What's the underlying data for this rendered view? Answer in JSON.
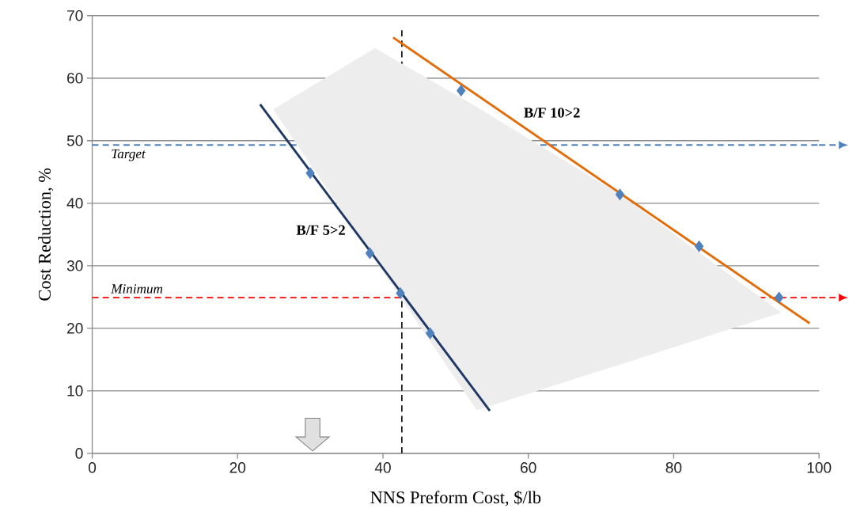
{
  "chart_data": {
    "type": "line",
    "xlabel": "NNS Preform Cost, $/lb",
    "ylabel": "Cost Reduction, %",
    "xlim": [
      0,
      100
    ],
    "xticks": [
      0,
      20,
      40,
      60,
      80,
      100
    ],
    "ylim": [
      0,
      70
    ],
    "yticks": [
      0,
      10,
      20,
      30,
      40,
      50,
      60,
      70
    ],
    "grid": "y",
    "series": [
      {
        "name": "B/F 5>2",
        "color": "#1f3864",
        "marker": "none",
        "x": [
          23.1,
          54.7
        ],
        "values": [
          55.8,
          6.8
        ]
      },
      {
        "name": "B/F 10>2",
        "color": "#e36c09",
        "marker": "none",
        "x": [
          41.4,
          98.7
        ],
        "values": [
          66.5,
          20.8
        ]
      },
      {
        "type": "scatter",
        "color": "#4f81bd",
        "marker": "diamond",
        "x": [
          30.0,
          38.2,
          42.4,
          46.5,
          50.75,
          72.6,
          83.5,
          94.5
        ],
        "values": [
          44.8,
          32.0,
          25.6,
          19.2,
          58.0,
          41.4,
          33.1,
          24.9
        ]
      },
      {
        "type": "area",
        "color": "#ededed",
        "x": [
          24.9,
          38.9,
          52.9,
          72.6,
          94.8
        ],
        "values": [
          null,
          null,
          null,
          null,
          null
        ],
        "lower": [
          55.0,
          31.0,
          6.9,
          14.2,
          22.5
        ],
        "upper": [
          55.0,
          64.8,
          55.4,
          41.4,
          22.5
        ]
      }
    ],
    "ref_lines": [
      {
        "axis": "y",
        "value": 49.3,
        "label": "Target",
        "color": "#4f81bd",
        "line_style": "dashed"
      },
      {
        "axis": "y",
        "value": 24.9,
        "label": "Minimum",
        "color": "#ff0000",
        "line_style": "dashed"
      },
      {
        "axis": "x",
        "value": 42.6,
        "color": "#000000",
        "line_style": "dashed"
      }
    ]
  }
}
